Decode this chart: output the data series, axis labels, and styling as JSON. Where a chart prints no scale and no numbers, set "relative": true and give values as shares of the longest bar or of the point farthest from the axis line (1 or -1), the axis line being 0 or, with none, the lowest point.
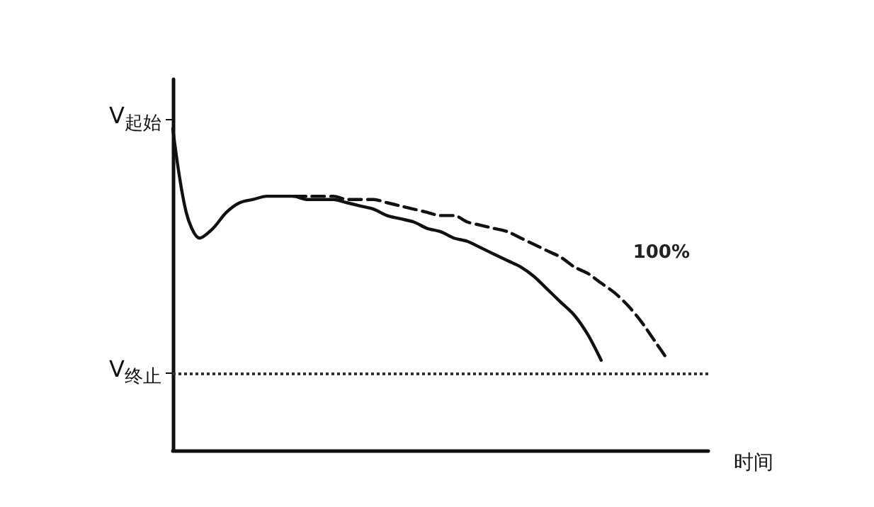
{
  "chart_data": {
    "type": "line",
    "relative": true,
    "xlabel": "时间",
    "categories": [
      null,
      null,
      null,
      null,
      null,
      null,
      null,
      null,
      null,
      null,
      null,
      null,
      null,
      null,
      null,
      null,
      null,
      null,
      null,
      null,
      null,
      null,
      null,
      null,
      null,
      null,
      null,
      null,
      null,
      null,
      null,
      null,
      null,
      null,
      null,
      null,
      null,
      null,
      null,
      null,
      null
    ],
    "series": [
      {
        "color": "#111111",
        "line_style": "solid",
        "values": [
          1,
          0.74,
          0.66,
          0.69,
          0.74,
          0.77,
          0.78,
          0.79,
          0.79,
          0.79,
          0.78,
          0.78,
          0.78,
          0.77,
          0.76,
          0.75,
          0.73,
          0.72,
          0.71,
          0.69,
          0.68,
          0.66,
          0.65,
          0.63,
          0.61,
          0.59,
          0.57,
          0.54,
          0.5,
          0.46,
          0.42,
          0.36,
          0.28,
          null,
          null,
          null,
          null,
          null,
          null,
          null,
          null
        ]
      },
      {
        "color": "#111111",
        "line_style": "dashed",
        "values": [
          null,
          null,
          null,
          null,
          null,
          null,
          null,
          null,
          null,
          0.79,
          0.79,
          0.79,
          0.79,
          0.78,
          0.78,
          0.78,
          0.77,
          0.76,
          0.75,
          0.74,
          0.73,
          0.73,
          0.71,
          0.7,
          0.69,
          0.68,
          0.66,
          0.64,
          0.62,
          0.6,
          0.57,
          0.55,
          0.52,
          0.49,
          0.45,
          0.4,
          0.34,
          0.28,
          null,
          null,
          null
        ]
      }
    ],
    "ref_lines": [
      {
        "axis": "y",
        "value": 1.03,
        "label": "V$_{起始}$"
      },
      {
        "axis": "y",
        "value": 0.24,
        "label": "V$_{终止}$",
        "line_style": "dotted"
      }
    ],
    "annotations": [
      "100%"
    ],
    "grid": false,
    "marker": "none"
  }
}
